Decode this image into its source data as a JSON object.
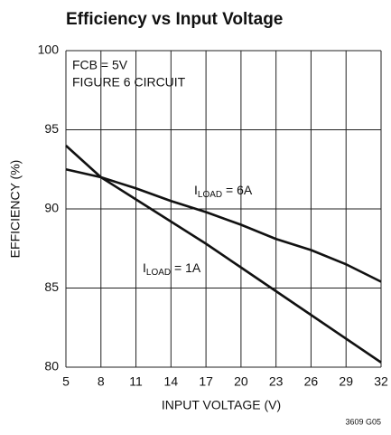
{
  "chart_data": {
    "type": "line",
    "title": "Efficiency vs Input Voltage",
    "x_label": "INPUT VOLTAGE (V)",
    "y_label": "EFFICIENCY (%)",
    "note": "3609 G05",
    "annotations": [
      "FCB = 5V",
      "FIGURE 6 CIRCUIT"
    ],
    "x": [
      5,
      8,
      11,
      14,
      17,
      20,
      23,
      26,
      29,
      32
    ],
    "series": [
      {
        "name": [
          "I",
          "LOAD",
          " = 6A"
        ],
        "color": "#111111",
        "values": [
          92.5,
          92.0,
          91.3,
          90.5,
          89.8,
          89.0,
          88.1,
          87.4,
          86.5,
          85.4
        ]
      },
      {
        "name": [
          "I",
          "LOAD",
          " = 1A"
        ],
        "color": "#111111",
        "values": [
          94.0,
          92.0,
          90.6,
          89.2,
          87.8,
          86.3,
          84.8,
          83.3,
          81.8,
          80.3
        ]
      }
    ],
    "xlim": [
      5,
      32
    ],
    "ylim": [
      80,
      100
    ],
    "xticks": [
      5,
      8,
      11,
      14,
      17,
      20,
      23,
      26,
      29,
      32
    ],
    "yticks": [
      80,
      85,
      90,
      95,
      100
    ],
    "grid": true
  }
}
